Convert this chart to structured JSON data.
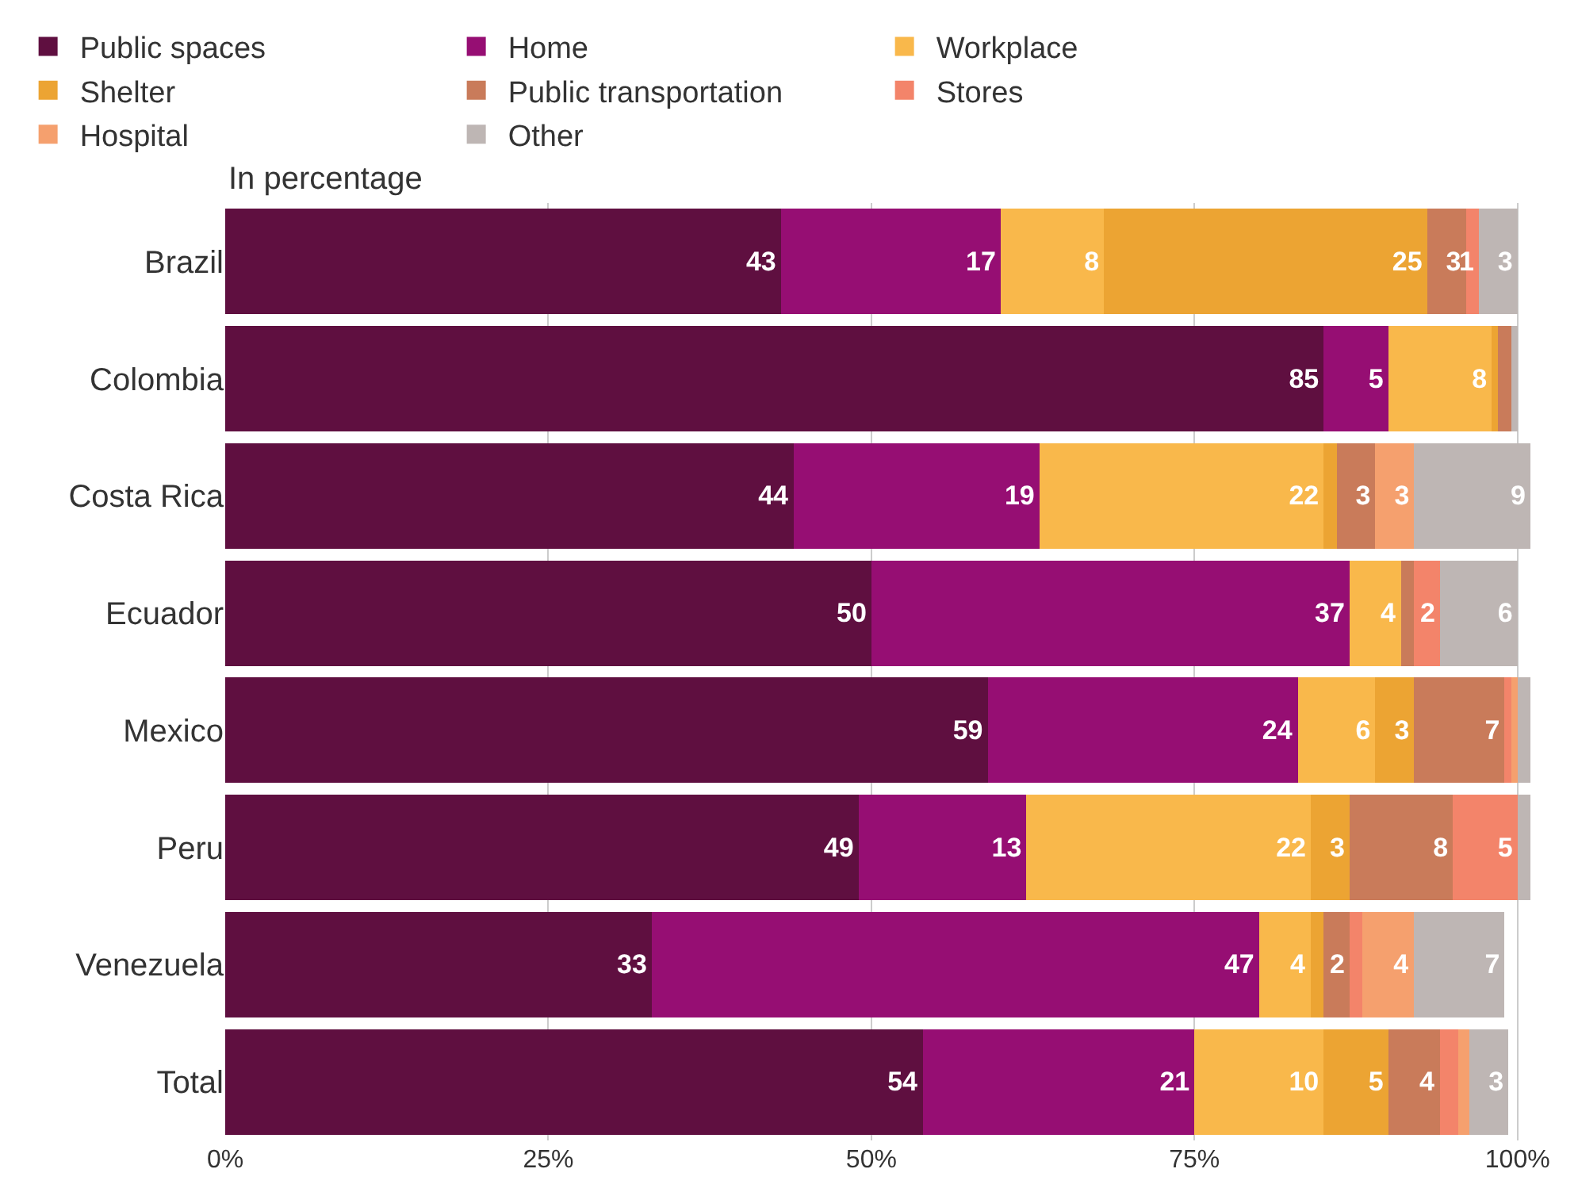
{
  "chart_data": {
    "type": "bar",
    "orientation": "horizontal",
    "stacked": true,
    "subtitle": "In percentage",
    "legend": "top",
    "grid": "x",
    "categories": [
      "Brazil",
      "Colombia",
      "Costa Rica",
      "Ecuador",
      "Mexico",
      "Peru",
      "Venezuela",
      "Total"
    ],
    "xlim": [
      0,
      101
    ],
    "xticks": [
      {
        "value": 0,
        "label": "0%"
      },
      {
        "value": 25,
        "label": "25%"
      },
      {
        "value": 50,
        "label": "50%"
      },
      {
        "value": 75,
        "label": "75%"
      },
      {
        "value": 100,
        "label": "100%"
      }
    ],
    "series": [
      {
        "name": "Public spaces",
        "color": "#5f0f40",
        "values": [
          43,
          85,
          44,
          50,
          59,
          49,
          33,
          54
        ],
        "value_labels": [
          "43",
          "85",
          "44",
          "50",
          "59",
          "49",
          "33",
          "54"
        ]
      },
      {
        "name": "Home",
        "color": "#960e73",
        "values": [
          17,
          5,
          19,
          37,
          24,
          13,
          47,
          21
        ],
        "value_labels": [
          "17",
          "5",
          "19",
          "37",
          "24",
          "13",
          "47",
          "21"
        ]
      },
      {
        "name": "Workplace",
        "color": "#f9b84b",
        "values": [
          8,
          8,
          22,
          4,
          6,
          22,
          4,
          10
        ],
        "value_labels": [
          "8",
          "8",
          "22",
          "4",
          "6",
          "22",
          "4",
          "10"
        ]
      },
      {
        "name": "Shelter",
        "color": "#eca433",
        "values": [
          25,
          0.5,
          1,
          0,
          3,
          3,
          1,
          5
        ],
        "value_labels": [
          "25",
          null,
          null,
          null,
          "3",
          "3",
          null,
          "5"
        ]
      },
      {
        "name": "Public transportation",
        "color": "#c97b5a",
        "values": [
          3,
          1,
          3,
          1,
          7,
          8,
          2,
          4
        ],
        "value_labels": [
          "3",
          null,
          "3",
          null,
          "7",
          "8",
          "2",
          "4"
        ]
      },
      {
        "name": "Stores",
        "color": "#f3846a",
        "values": [
          1,
          0,
          0,
          2,
          0.5,
          5,
          1,
          1.4
        ],
        "value_labels": [
          "1",
          null,
          null,
          "2",
          null,
          "5",
          null,
          null
        ]
      },
      {
        "name": "Hospital",
        "color": "#f5a06e",
        "values": [
          0,
          0,
          3,
          0,
          0.5,
          0,
          4,
          0.9
        ],
        "value_labels": [
          null,
          null,
          "3",
          null,
          null,
          null,
          "4",
          null
        ]
      },
      {
        "name": "Other",
        "color": "#beb6b4",
        "values": [
          3,
          0.5,
          9,
          6,
          1,
          1.3,
          7,
          3
        ],
        "value_labels": [
          "3",
          null,
          "9",
          "6",
          null,
          null,
          "7",
          "3"
        ]
      }
    ]
  }
}
